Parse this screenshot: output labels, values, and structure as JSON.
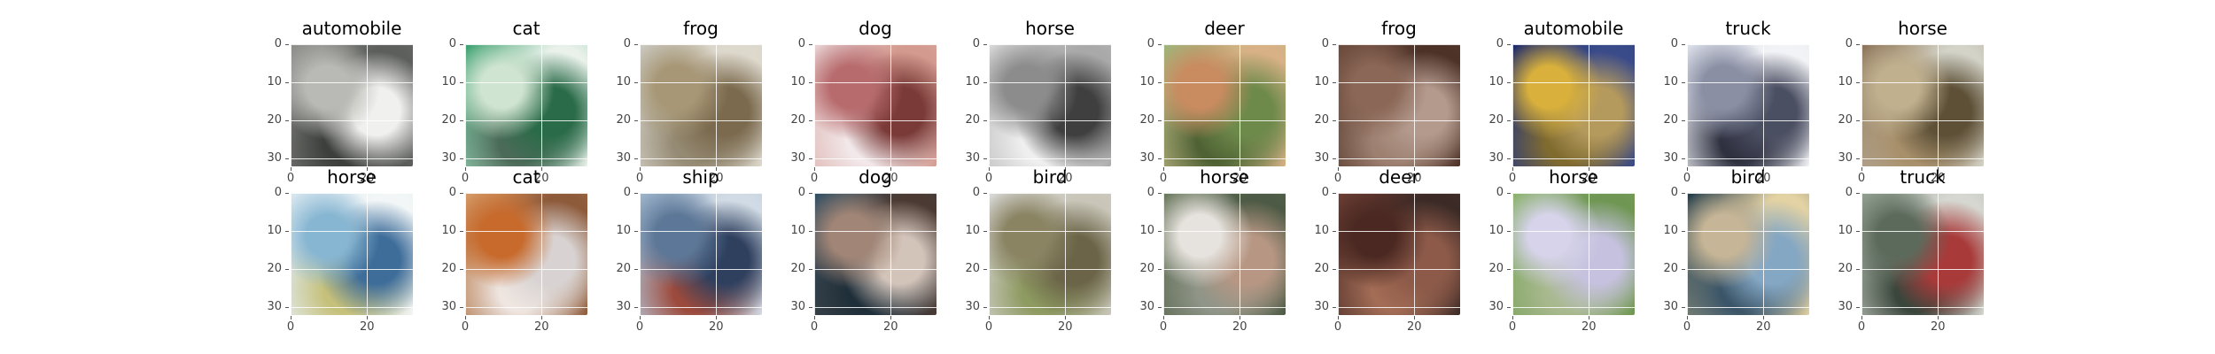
{
  "axis": {
    "y_ticks": [
      "0",
      "10",
      "20",
      "30"
    ],
    "x_ticks": [
      "0",
      "20"
    ]
  },
  "panels": [
    {
      "label": "automobile",
      "colors": [
        "#8e8f8b",
        "#b9b9b5",
        "#f0f0ee",
        "#5d5f5c",
        "#3d3f3c"
      ]
    },
    {
      "label": "cat",
      "colors": [
        "#3aa06f",
        "#cfe4d1",
        "#2a6b49",
        "#e9f1ea",
        "#4b6b58"
      ]
    },
    {
      "label": "frog",
      "colors": [
        "#c8c6bd",
        "#a79776",
        "#7b6a4e",
        "#ded9cd",
        "#958a73"
      ]
    },
    {
      "label": "dog",
      "colors": [
        "#e8d2d4",
        "#b86b6d",
        "#7a3a37",
        "#d39a8f",
        "#f2e8ea"
      ]
    },
    {
      "label": "horse",
      "colors": [
        "#d7d7d7",
        "#8c8c8c",
        "#3f3f3f",
        "#a9a9a9",
        "#efefef"
      ]
    },
    {
      "label": "deer",
      "colors": [
        "#9db57b",
        "#c98b60",
        "#6e8a4b",
        "#d8b186",
        "#4f6234"
      ]
    },
    {
      "label": "frog",
      "colors": [
        "#6b4b3c",
        "#8b6757",
        "#b39a8d",
        "#4d3228",
        "#9d8070"
      ]
    },
    {
      "label": "automobile",
      "colors": [
        "#1e2b6b",
        "#d8b03b",
        "#b59a5d",
        "#3a4b8a",
        "#806b2f"
      ]
    },
    {
      "label": "truck",
      "colors": [
        "#d9dde8",
        "#8a8fa4",
        "#4b4f62",
        "#f2f3f6",
        "#2f3140"
      ]
    },
    {
      "label": "horse",
      "colors": [
        "#8c7359",
        "#c0b08e",
        "#5d5037",
        "#d3d3c8",
        "#a8906b"
      ]
    },
    {
      "label": "horse",
      "colors": [
        "#d6e6ef",
        "#87b6d2",
        "#3e6d9a",
        "#f2f6f7",
        "#c5c07a"
      ]
    },
    {
      "label": "cat",
      "colors": [
        "#d69a66",
        "#c76a2c",
        "#d8d3d2",
        "#8d5a3a",
        "#efe6e1"
      ]
    },
    {
      "label": "ship",
      "colors": [
        "#9ab1c9",
        "#5c7797",
        "#2f405f",
        "#d1dbe5",
        "#9c4a3c"
      ]
    },
    {
      "label": "dog",
      "colors": [
        "#315064",
        "#a18576",
        "#d3c4ba",
        "#4b3a33",
        "#1f2f3a"
      ]
    },
    {
      "label": "bird",
      "colors": [
        "#d8d8d6",
        "#8a8463",
        "#6b6448",
        "#c9c6b9",
        "#8d9a60"
      ]
    },
    {
      "label": "horse",
      "colors": [
        "#6c7a5f",
        "#e6e2dd",
        "#b79784",
        "#4d5a45",
        "#8f9588"
      ]
    },
    {
      "label": "deer",
      "colors": [
        "#6b3d33",
        "#4b2922",
        "#8d5a49",
        "#3b2a26",
        "#a26c55"
      ]
    },
    {
      "label": "horse",
      "colors": [
        "#8db36e",
        "#d6d3ea",
        "#c5c1de",
        "#6f9653",
        "#a9b98f"
      ]
    },
    {
      "label": "bird",
      "colors": [
        "#1f3a49",
        "#c6b596",
        "#84a7c4",
        "#e3d2a3",
        "#3b5568"
      ]
    },
    {
      "label": "truck",
      "colors": [
        "#8d9c8c",
        "#5c6a5c",
        "#a93a3a",
        "#d5d7d0",
        "#3a463c"
      ]
    }
  ]
}
